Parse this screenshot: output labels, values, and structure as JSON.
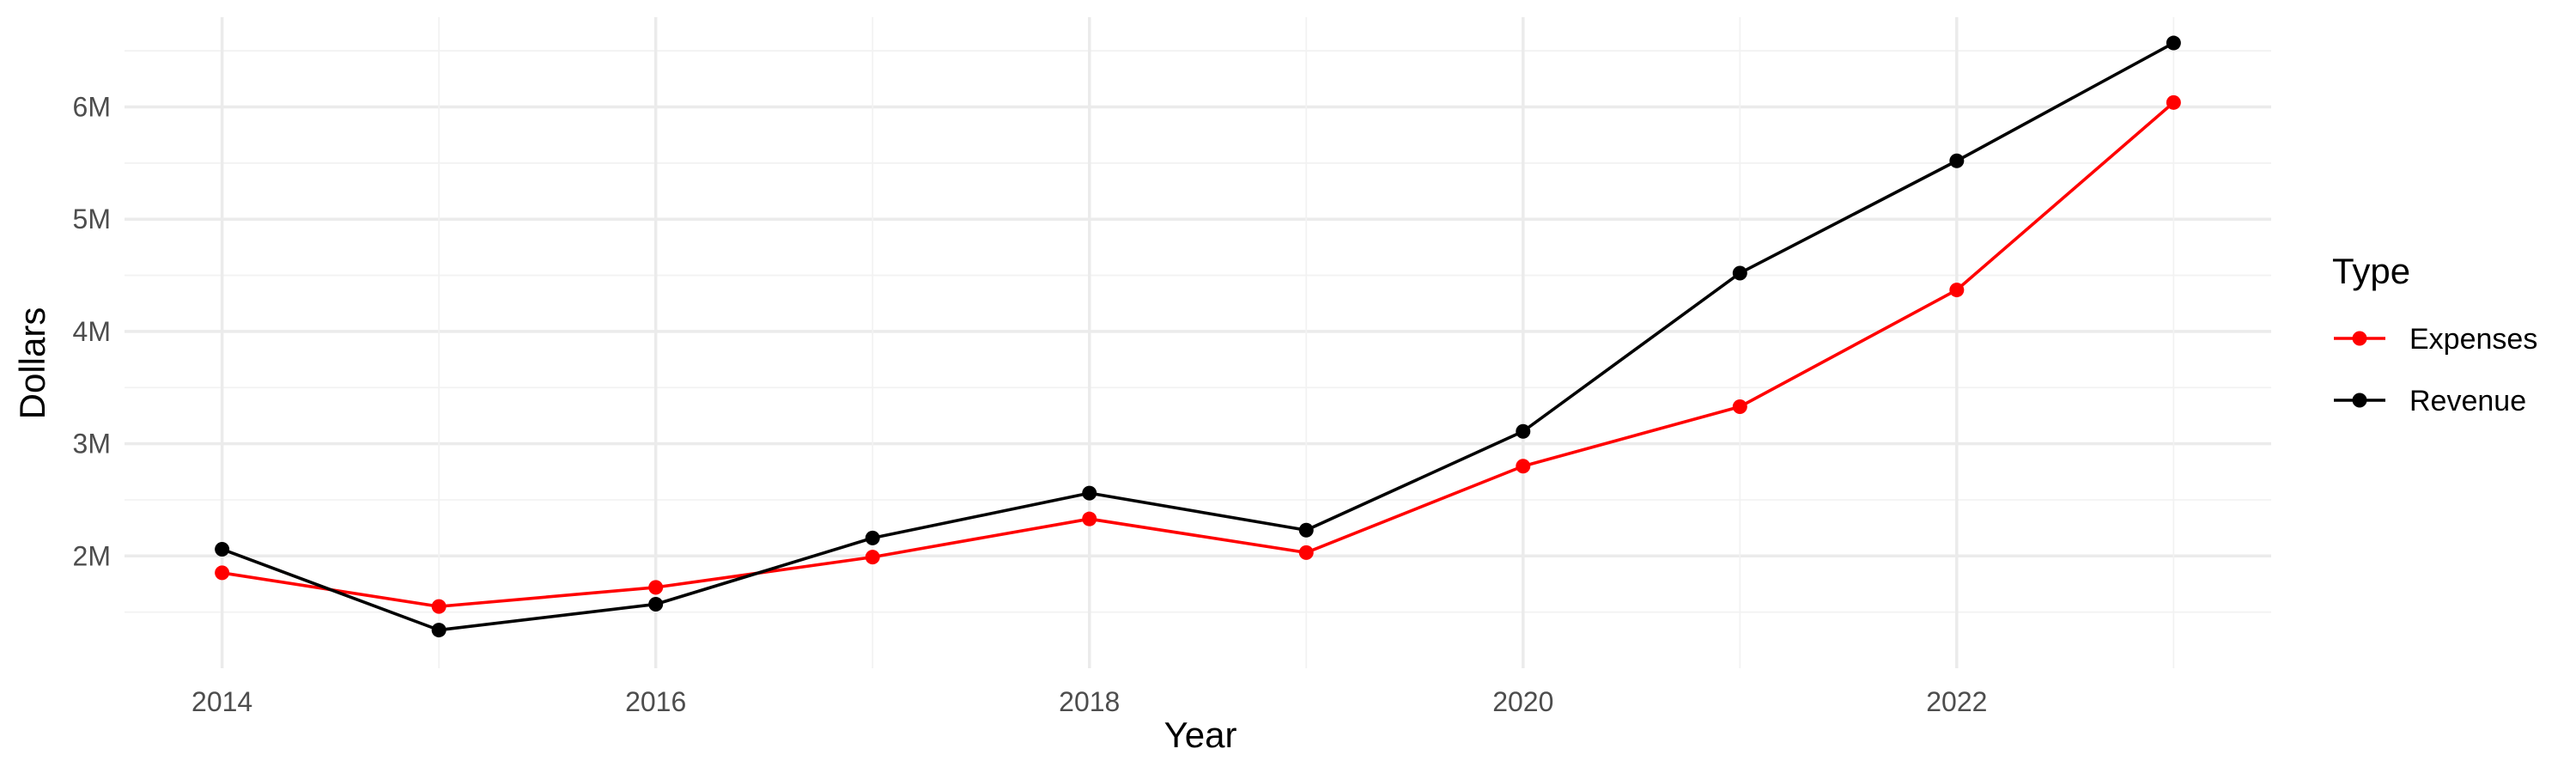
{
  "chart_data": {
    "type": "line",
    "xlabel": "Year",
    "ylabel": "Dollars",
    "x": [
      2014,
      2015,
      2016,
      2017,
      2018,
      2019,
      2020,
      2021,
      2022,
      2023
    ],
    "x_ticks": [
      "2014",
      "2016",
      "2018",
      "2020",
      "2022"
    ],
    "y_ticks": [
      "2M",
      "3M",
      "4M",
      "5M",
      "6M"
    ],
    "ylim": [
      1000000,
      6800000
    ],
    "xlim": [
      2013.55,
      2023.45
    ],
    "grid": true,
    "legend": {
      "title": "Type",
      "position": "right"
    },
    "series": [
      {
        "name": "Expenses",
        "color": "#ff0000",
        "values": [
          1850000,
          1550000,
          1720000,
          1990000,
          2330000,
          2030000,
          2800000,
          3330000,
          4370000,
          6040000
        ]
      },
      {
        "name": "Revenue",
        "color": "#000000",
        "values": [
          2060000,
          1340000,
          1570000,
          2160000,
          2560000,
          2230000,
          3110000,
          4520000,
          5520000,
          6570000
        ]
      }
    ]
  }
}
